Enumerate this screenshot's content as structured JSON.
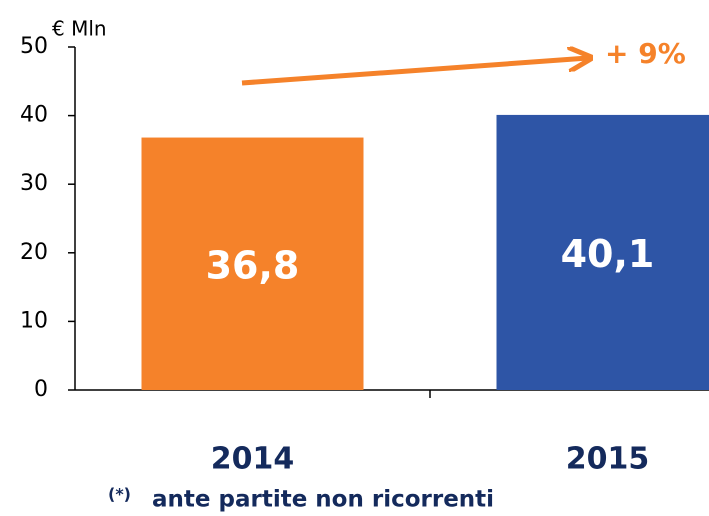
{
  "chart_data": {
    "type": "bar",
    "y_axis_label": "€ Mln",
    "categories": [
      "2014",
      "2015"
    ],
    "values": [
      36.8,
      40.1
    ],
    "value_labels": [
      "36,8",
      "40,1"
    ],
    "colors": [
      "#f5822a",
      "#2e55a6"
    ],
    "ylim": [
      0,
      50
    ],
    "yticks": [
      0,
      10,
      20,
      30,
      40,
      50
    ],
    "annotation": "+ 9%",
    "footnote_marker": "(*)",
    "footnote": "ante partite non ricorrenti"
  }
}
